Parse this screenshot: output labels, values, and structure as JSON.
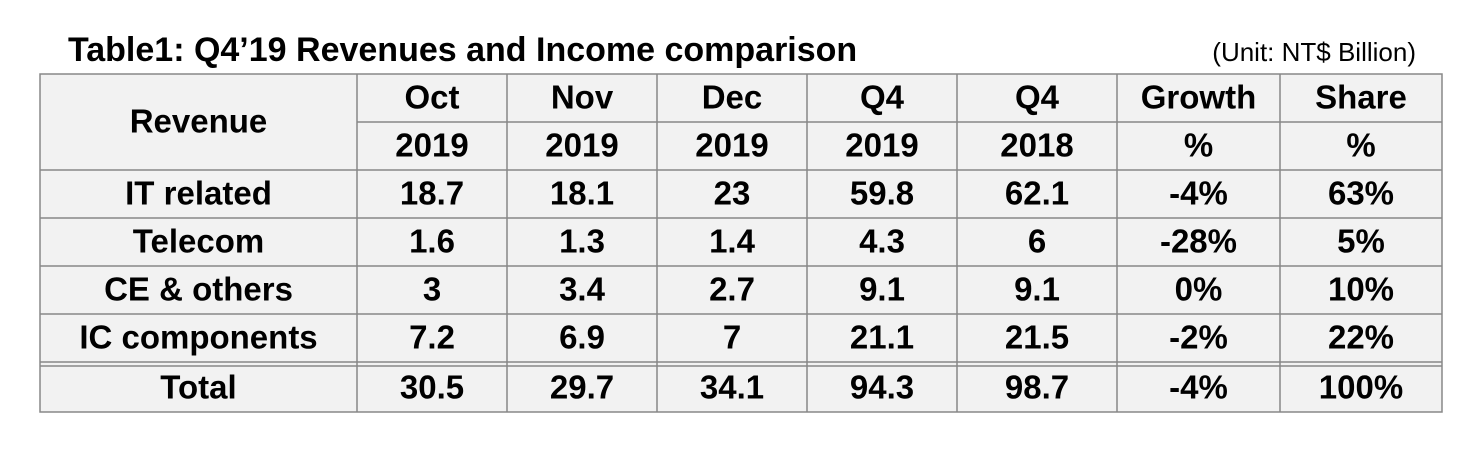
{
  "title": "Table1: Q4’19 Revenues and Income comparison",
  "unit": "(Unit: NT$ Billion)",
  "table": {
    "header": {
      "label": "Revenue",
      "columns": [
        [
          "Oct",
          "2019"
        ],
        [
          "Nov",
          "2019"
        ],
        [
          "Dec",
          "2019"
        ],
        [
          "Q4",
          "2019"
        ],
        [
          "Q4",
          "2018"
        ],
        [
          "Growth",
          "%"
        ],
        [
          "Share",
          "%"
        ]
      ]
    },
    "rows": [
      [
        "IT related",
        "18.7",
        "18.1",
        "23",
        "59.8",
        "62.1",
        "-4%",
        "63%"
      ],
      [
        "Telecom",
        "1.6",
        "1.3",
        "1.4",
        "4.3",
        "6",
        "-28%",
        "5%"
      ],
      [
        "CE & others",
        "3",
        "3.4",
        "2.7",
        "9.1",
        "9.1",
        "0%",
        "10%"
      ],
      [
        "IC components",
        "7.2",
        "6.9",
        "7",
        "21.1",
        "21.5",
        "-2%",
        "22%"
      ]
    ],
    "total": [
      "Total",
      "30.5",
      "29.7",
      "34.1",
      "94.3",
      "98.7",
      "-4%",
      "100%"
    ]
  }
}
